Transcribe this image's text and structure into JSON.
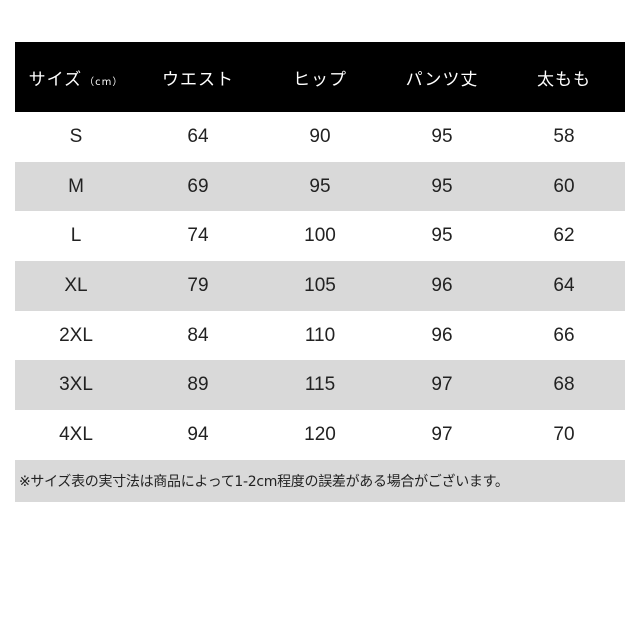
{
  "header": {
    "size_label": "サイズ",
    "size_unit": "（cm）",
    "columns": [
      "ウエスト",
      "ヒップ",
      "パンツ丈",
      "太もも"
    ]
  },
  "rows": [
    {
      "size": "S",
      "waist": "64",
      "hip": "90",
      "length": "95",
      "thigh": "58"
    },
    {
      "size": "M",
      "waist": "69",
      "hip": "95",
      "length": "95",
      "thigh": "60"
    },
    {
      "size": "L",
      "waist": "74",
      "hip": "100",
      "length": "95",
      "thigh": "62"
    },
    {
      "size": "XL",
      "waist": "79",
      "hip": "105",
      "length": "96",
      "thigh": "64"
    },
    {
      "size": "2XL",
      "waist": "84",
      "hip": "110",
      "length": "96",
      "thigh": "66"
    },
    {
      "size": "3XL",
      "waist": "89",
      "hip": "115",
      "length": "97",
      "thigh": "68"
    },
    {
      "size": "4XL",
      "waist": "94",
      "hip": "120",
      "length": "97",
      "thigh": "70"
    }
  ],
  "note": "※サイズ表の実寸法は商品によって1-2cm程度の誤差がある場合がございます。",
  "colors": {
    "header_bg": "#000000",
    "stripe": "#d9d9d9"
  }
}
